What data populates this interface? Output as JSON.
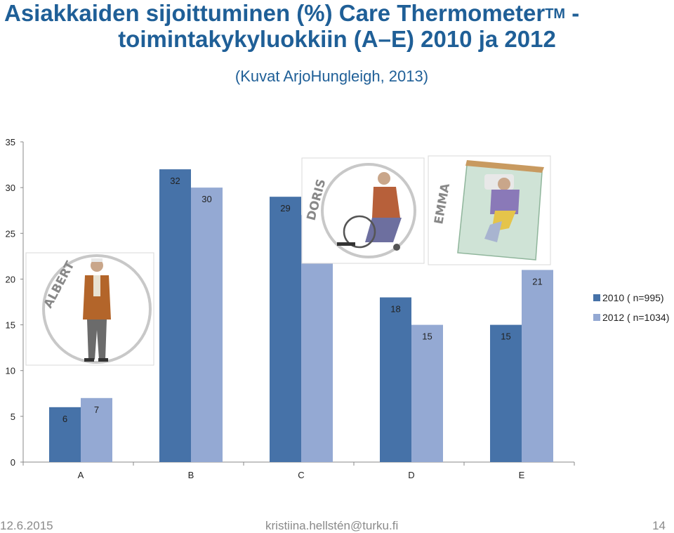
{
  "slide": {
    "title_line1": "Asiakkaiden sijoittuminen (%) Care Thermometer",
    "title_sup": "TM",
    "title_line1_suffix": " -",
    "title_line2": "toimintakykyluokkiin (A–E) 2010 ja 2012",
    "subtitle": "(Kuvat ArjoHungleigh, 2013)"
  },
  "illustrations": {
    "albert_label": "ALBERT",
    "doris_label": "DORIS",
    "emma_label": "EMMA"
  },
  "footer": {
    "date": "12.6.2015",
    "author": "kristiina.hellstén@turku.fi",
    "page": "14"
  },
  "chart_data": {
    "type": "bar",
    "categories": [
      "A",
      "B",
      "C",
      "D",
      "E"
    ],
    "series": [
      {
        "name": "2010 ( n=995)",
        "values": [
          6,
          32,
          29,
          18,
          15
        ],
        "color": "#4672a8"
      },
      {
        "name": "2012 ( n=1034)",
        "values": [
          7,
          30,
          27,
          15,
          21
        ],
        "color": "#94a9d3"
      }
    ],
    "ylim": [
      0,
      35
    ],
    "yticks": [
      0,
      5,
      10,
      15,
      20,
      25,
      30,
      35
    ],
    "xlabel": "",
    "ylabel": "",
    "grid": false,
    "legend": "right"
  }
}
